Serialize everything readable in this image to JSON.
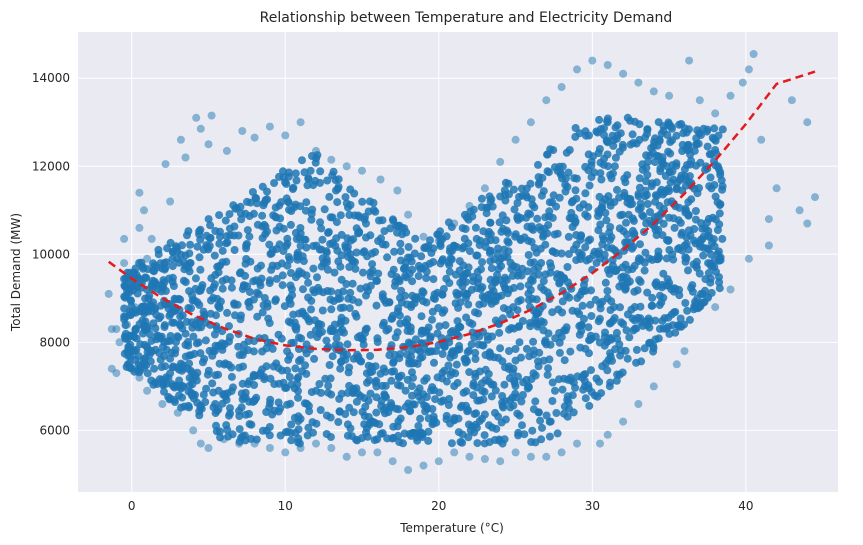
{
  "chart_data": {
    "type": "scatter",
    "title": "Relationship between Temperature and Electricity Demand",
    "xlabel": "Temperature (°C)",
    "ylabel": "Total Demand (MW)",
    "xlim": [
      -3.5,
      46
    ],
    "ylim": [
      4600,
      15050
    ],
    "xticks": [
      0,
      10,
      20,
      30,
      40
    ],
    "yticks": [
      6000,
      8000,
      10000,
      12000,
      14000
    ],
    "xtick_labels": [
      "0",
      "10",
      "20",
      "30",
      "40"
    ],
    "ytick_labels": [
      "6000",
      "8000",
      "10000",
      "12000",
      "14000"
    ],
    "grid": true,
    "background": "#eaeaf2",
    "series": [
      {
        "kind": "scatter",
        "color": "#1f77b4",
        "opacity": 0.5,
        "points": [
          [
            -1.5,
            9100
          ],
          [
            -1.3,
            8300
          ],
          [
            -1.0,
            7300
          ],
          [
            -0.8,
            8000
          ],
          [
            -0.5,
            10350
          ],
          [
            -0.5,
            9800
          ],
          [
            -0.3,
            8400
          ],
          [
            0.5,
            11400
          ],
          [
            0.8,
            11000
          ],
          [
            0.5,
            10600
          ],
          [
            1.0,
            9900
          ],
          [
            1.3,
            10350
          ],
          [
            2.2,
            12050
          ],
          [
            2.5,
            11200
          ],
          [
            3.2,
            12600
          ],
          [
            3.5,
            12200
          ],
          [
            4.2,
            13100
          ],
          [
            4.5,
            12850
          ],
          [
            5.2,
            13150
          ],
          [
            5.0,
            12500
          ],
          [
            6.2,
            12350
          ],
          [
            7.2,
            12800
          ],
          [
            8.0,
            12650
          ],
          [
            9.0,
            12900
          ],
          [
            10.0,
            12700
          ],
          [
            11.0,
            13000
          ],
          [
            12.0,
            12350
          ],
          [
            13.0,
            12150
          ],
          [
            14.0,
            12000
          ],
          [
            15.0,
            11900
          ],
          [
            16.2,
            11700
          ],
          [
            17.3,
            11450
          ],
          [
            18.0,
            10900
          ],
          [
            19.0,
            10400
          ],
          [
            20.0,
            10300
          ],
          [
            21.0,
            10700
          ],
          [
            22.0,
            11100
          ],
          [
            23.0,
            11500
          ],
          [
            24.0,
            12100
          ],
          [
            25.0,
            12600
          ],
          [
            26.0,
            13000
          ],
          [
            27.0,
            13500
          ],
          [
            28.0,
            13800
          ],
          [
            29.0,
            14200
          ],
          [
            30.0,
            14400
          ],
          [
            31.0,
            14300
          ],
          [
            32.0,
            14100
          ],
          [
            33.0,
            13900
          ],
          [
            34.0,
            13700
          ],
          [
            35.0,
            13600
          ],
          [
            36.3,
            14400
          ],
          [
            37.0,
            13500
          ],
          [
            38.0,
            13200
          ],
          [
            39.0,
            13600
          ],
          [
            39.8,
            13900
          ],
          [
            40.5,
            14550
          ],
          [
            40.2,
            14200
          ],
          [
            41.0,
            12600
          ],
          [
            41.5,
            10800
          ],
          [
            42.0,
            11500
          ],
          [
            43.0,
            13500
          ],
          [
            44.0,
            13000
          ],
          [
            44.5,
            11300
          ],
          [
            43.5,
            11000
          ],
          [
            44.0,
            10700
          ],
          [
            41.5,
            10200
          ],
          [
            40.2,
            9900
          ],
          [
            39.0,
            9200
          ],
          [
            38.0,
            8800
          ],
          [
            37.5,
            9000
          ],
          [
            36.0,
            7800
          ],
          [
            35.5,
            7500
          ],
          [
            34.0,
            7000
          ],
          [
            33.0,
            6600
          ],
          [
            32.0,
            6200
          ],
          [
            31.0,
            5900
          ],
          [
            30.5,
            5700
          ],
          [
            29.0,
            5700
          ],
          [
            28.0,
            5500
          ],
          [
            27.0,
            5400
          ],
          [
            26.0,
            5400
          ],
          [
            25.0,
            5500
          ],
          [
            24.0,
            5300
          ],
          [
            23.0,
            5350
          ],
          [
            22.0,
            5400
          ],
          [
            21.0,
            5500
          ],
          [
            20.0,
            5300
          ],
          [
            19.0,
            5200
          ],
          [
            18.0,
            5100
          ],
          [
            17.0,
            5300
          ],
          [
            16.0,
            5500
          ],
          [
            15.0,
            5500
          ],
          [
            14.0,
            5400
          ],
          [
            13.0,
            5600
          ],
          [
            12.0,
            5700
          ],
          [
            11.0,
            5600
          ],
          [
            10.0,
            5500
          ],
          [
            9.0,
            5600
          ],
          [
            8.0,
            5700
          ],
          [
            7.0,
            5700
          ],
          [
            6.0,
            5800
          ],
          [
            5.0,
            5600
          ],
          [
            4.5,
            5700
          ],
          [
            4.0,
            6000
          ],
          [
            3.0,
            6400
          ],
          [
            2.0,
            6600
          ],
          [
            1.0,
            6900
          ],
          [
            0.5,
            7200
          ],
          [
            0.0,
            7400
          ],
          [
            -0.3,
            7800
          ],
          [
            -1.3,
            7400
          ],
          [
            -1.0,
            8300
          ],
          [
            0.2,
            8800
          ],
          [
            0.6,
            9400
          ]
        ]
      },
      {
        "kind": "line",
        "style": "dashed",
        "color": "#e41a1c",
        "points": [
          [
            -1.5,
            9830
          ],
          [
            0,
            9450
          ],
          [
            2,
            9000
          ],
          [
            4,
            8620
          ],
          [
            6,
            8320
          ],
          [
            8,
            8080
          ],
          [
            10,
            7930
          ],
          [
            12,
            7850
          ],
          [
            14,
            7820
          ],
          [
            16,
            7830
          ],
          [
            18,
            7890
          ],
          [
            20,
            8010
          ],
          [
            22,
            8190
          ],
          [
            24,
            8430
          ],
          [
            26,
            8740
          ],
          [
            28,
            9120
          ],
          [
            30,
            9570
          ],
          [
            32,
            10100
          ],
          [
            34,
            10700
          ],
          [
            36,
            11380
          ],
          [
            38,
            12130
          ],
          [
            40,
            12960
          ],
          [
            42,
            13870
          ],
          [
            44.5,
            14150
          ]
        ]
      }
    ]
  }
}
